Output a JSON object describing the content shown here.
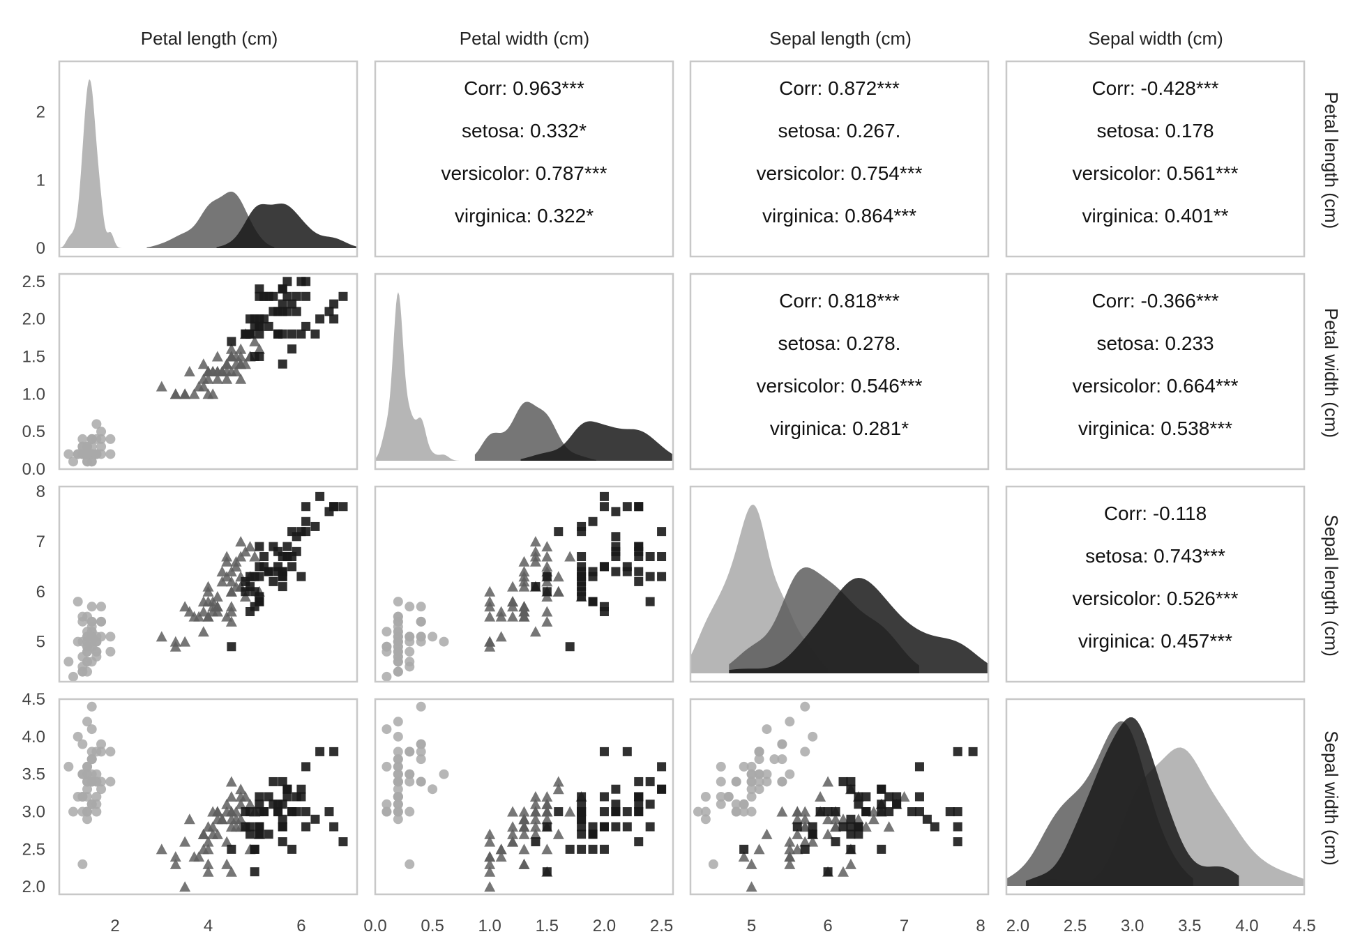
{
  "chart_data": {
    "type": "scatter",
    "title": "",
    "variables": [
      "Petal length (cm)",
      "Petal width (cm)",
      "Sepal length (cm)",
      "Sepal width (cm)"
    ],
    "species": [
      "setosa",
      "versicolor",
      "virginica"
    ],
    "colors": {
      "setosa": "#a9a9a9",
      "versicolor": "#5e5e5e",
      "virginica": "#1a1a1a"
    },
    "markers": {
      "setosa": "circle",
      "versicolor": "triangle",
      "virginica": "square"
    },
    "grid": false,
    "axis_ranges": [
      [
        0.8,
        7.2
      ],
      [
        0.0,
        2.6
      ],
      [
        4.2,
        8.1
      ],
      [
        1.9,
        4.5
      ]
    ],
    "axis_ticks": [
      [
        2,
        4,
        6
      ],
      [
        0.0,
        0.5,
        1.0,
        1.5,
        2.0,
        2.5
      ],
      [
        5,
        6,
        7,
        8
      ],
      [
        2.0,
        2.5,
        3.0,
        3.5,
        4.0,
        4.5
      ]
    ],
    "axis_tick_labels": [
      [
        "2",
        "4",
        "6"
      ],
      [
        "0.0",
        "0.5",
        "1.0",
        "1.5",
        "2.0",
        "2.5"
      ],
      [
        "5",
        "6",
        "7",
        "8"
      ],
      [
        "2.0",
        "2.5",
        "3.0",
        "3.5",
        "4.0",
        "4.5"
      ]
    ],
    "density_y_range": [
      0,
      2.6
    ],
    "density_y_ticks": [
      0,
      1,
      2
    ],
    "density_y_tick_labels": [
      "0",
      "1",
      "2"
    ],
    "corr_panels": [
      {
        "row": 0,
        "col": 1,
        "lines": [
          "Corr: 0.963***",
          "setosa: 0.332*",
          "versicolor: 0.787***",
          "virginica: 0.322*"
        ]
      },
      {
        "row": 0,
        "col": 2,
        "lines": [
          "Corr: 0.872***",
          "setosa: 0.267.",
          "versicolor: 0.754***",
          "virginica: 0.864***"
        ]
      },
      {
        "row": 0,
        "col": 3,
        "lines": [
          "Corr: -0.428***",
          "setosa: 0.178",
          "versicolor: 0.561***",
          "virginica: 0.401**"
        ]
      },
      {
        "row": 1,
        "col": 2,
        "lines": [
          "Corr: 0.818***",
          "setosa: 0.278.",
          "versicolor: 0.546***",
          "virginica: 0.281*"
        ]
      },
      {
        "row": 1,
        "col": 3,
        "lines": [
          "Corr: -0.366***",
          "setosa: 0.233",
          "versicolor: 0.664***",
          "virginica: 0.538***"
        ]
      },
      {
        "row": 2,
        "col": 3,
        "lines": [
          "Corr: -0.118",
          "setosa: 0.743***",
          "versicolor: 0.526***",
          "virginica: 0.457***"
        ]
      }
    ],
    "series": [
      {
        "name": "setosa",
        "petal_length": [
          1.4,
          1.4,
          1.3,
          1.5,
          1.4,
          1.7,
          1.4,
          1.5,
          1.4,
          1.5,
          1.5,
          1.6,
          1.4,
          1.1,
          1.2,
          1.5,
          1.3,
          1.4,
          1.7,
          1.5,
          1.7,
          1.5,
          1.0,
          1.7,
          1.9,
          1.6,
          1.6,
          1.5,
          1.4,
          1.6,
          1.6,
          1.5,
          1.5,
          1.4,
          1.5,
          1.2,
          1.3,
          1.4,
          1.3,
          1.5,
          1.3,
          1.3,
          1.3,
          1.6,
          1.9,
          1.4,
          1.6,
          1.4,
          1.5,
          1.4
        ],
        "petal_width": [
          0.2,
          0.2,
          0.2,
          0.2,
          0.2,
          0.4,
          0.3,
          0.2,
          0.2,
          0.1,
          0.2,
          0.2,
          0.1,
          0.1,
          0.2,
          0.4,
          0.4,
          0.3,
          0.3,
          0.3,
          0.2,
          0.4,
          0.2,
          0.5,
          0.2,
          0.2,
          0.4,
          0.2,
          0.2,
          0.2,
          0.2,
          0.4,
          0.1,
          0.2,
          0.2,
          0.2,
          0.2,
          0.1,
          0.2,
          0.2,
          0.3,
          0.3,
          0.2,
          0.6,
          0.4,
          0.3,
          0.2,
          0.2,
          0.2,
          0.2
        ],
        "sepal_length": [
          5.1,
          4.9,
          4.7,
          4.6,
          5.0,
          5.4,
          4.6,
          5.0,
          4.4,
          4.9,
          5.4,
          4.8,
          4.8,
          4.3,
          5.8,
          5.7,
          5.4,
          5.1,
          5.7,
          5.1,
          5.4,
          5.1,
          4.6,
          5.1,
          4.8,
          5.0,
          5.0,
          5.2,
          5.2,
          4.7,
          4.8,
          5.4,
          5.2,
          5.5,
          4.9,
          5.0,
          5.5,
          4.9,
          4.4,
          5.1,
          5.0,
          4.5,
          4.4,
          5.0,
          5.1,
          4.8,
          5.1,
          4.6,
          5.3,
          5.0
        ],
        "sepal_width": [
          3.5,
          3.0,
          3.2,
          3.1,
          3.6,
          3.9,
          3.4,
          3.4,
          2.9,
          3.1,
          3.7,
          3.4,
          3.0,
          3.0,
          4.0,
          4.4,
          3.9,
          3.5,
          3.8,
          3.8,
          3.4,
          3.7,
          3.6,
          3.3,
          3.4,
          3.0,
          3.4,
          3.5,
          3.4,
          3.2,
          3.1,
          3.4,
          4.1,
          4.2,
          3.1,
          3.2,
          3.5,
          3.6,
          3.0,
          3.4,
          3.5,
          2.3,
          3.2,
          3.5,
          3.8,
          3.0,
          3.8,
          3.2,
          3.7,
          3.3
        ]
      },
      {
        "name": "versicolor",
        "petal_length": [
          4.7,
          4.5,
          4.9,
          4.0,
          4.6,
          4.5,
          4.7,
          3.3,
          4.6,
          3.9,
          3.5,
          4.2,
          4.0,
          4.7,
          3.6,
          4.4,
          4.5,
          4.1,
          4.5,
          3.9,
          4.8,
          4.0,
          4.9,
          4.7,
          4.3,
          4.4,
          4.8,
          5.0,
          4.5,
          3.5,
          3.8,
          3.7,
          3.9,
          5.1,
          4.5,
          4.5,
          4.7,
          4.4,
          4.1,
          4.0,
          4.4,
          4.6,
          4.0,
          3.3,
          4.2,
          4.2,
          4.2,
          4.3,
          3.0,
          4.1
        ],
        "petal_width": [
          1.4,
          1.5,
          1.5,
          1.3,
          1.5,
          1.3,
          1.6,
          1.0,
          1.3,
          1.4,
          1.0,
          1.5,
          1.0,
          1.4,
          1.3,
          1.4,
          1.5,
          1.0,
          1.5,
          1.1,
          1.8,
          1.3,
          1.5,
          1.2,
          1.3,
          1.4,
          1.4,
          1.7,
          1.5,
          1.0,
          1.1,
          1.0,
          1.2,
          1.6,
          1.5,
          1.6,
          1.5,
          1.3,
          1.3,
          1.3,
          1.2,
          1.4,
          1.2,
          1.0,
          1.3,
          1.2,
          1.3,
          1.3,
          1.1,
          1.3
        ],
        "sepal_length": [
          7.0,
          6.4,
          6.9,
          5.5,
          6.5,
          5.7,
          6.3,
          4.9,
          6.6,
          5.2,
          5.0,
          5.9,
          6.0,
          6.1,
          5.6,
          6.7,
          5.6,
          5.8,
          6.2,
          5.6,
          5.9,
          6.1,
          6.3,
          6.1,
          6.4,
          6.6,
          6.8,
          6.7,
          6.0,
          5.7,
          5.5,
          5.5,
          5.8,
          6.0,
          5.4,
          6.0,
          6.7,
          6.3,
          5.6,
          5.5,
          5.5,
          6.1,
          5.8,
          5.0,
          5.6,
          5.7,
          5.7,
          6.2,
          5.1,
          5.7
        ],
        "sepal_width": [
          3.2,
          3.2,
          3.1,
          2.3,
          2.8,
          2.8,
          3.3,
          2.4,
          2.9,
          2.7,
          2.0,
          3.0,
          2.2,
          2.9,
          2.9,
          3.1,
          3.0,
          2.7,
          2.2,
          2.5,
          3.2,
          2.8,
          2.5,
          2.8,
          2.9,
          3.0,
          2.8,
          3.0,
          2.9,
          2.6,
          2.4,
          2.4,
          2.7,
          2.7,
          3.0,
          3.4,
          3.1,
          2.3,
          3.0,
          2.5,
          2.6,
          3.0,
          2.6,
          2.3,
          2.7,
          3.0,
          2.9,
          2.9,
          2.5,
          2.8
        ]
      },
      {
        "name": "virginica",
        "petal_length": [
          6.0,
          5.1,
          5.9,
          5.6,
          5.8,
          6.6,
          4.5,
          6.3,
          5.8,
          6.1,
          5.1,
          5.3,
          5.5,
          5.0,
          5.1,
          5.3,
          5.5,
          6.7,
          6.9,
          5.0,
          5.7,
          4.9,
          6.7,
          4.9,
          5.7,
          6.0,
          4.8,
          4.9,
          5.6,
          5.8,
          6.1,
          6.4,
          5.6,
          5.1,
          5.6,
          6.1,
          5.6,
          5.5,
          4.8,
          5.4,
          5.6,
          5.1,
          5.1,
          5.9,
          5.7,
          5.2,
          5.0,
          5.2,
          5.4,
          5.1
        ],
        "petal_width": [
          2.5,
          1.9,
          2.1,
          1.8,
          2.2,
          2.1,
          1.7,
          1.8,
          1.8,
          2.5,
          2.0,
          1.9,
          2.1,
          2.0,
          2.4,
          2.3,
          1.8,
          2.2,
          2.3,
          1.5,
          2.3,
          2.0,
          2.0,
          1.8,
          2.1,
          1.8,
          1.8,
          1.8,
          2.1,
          1.6,
          1.9,
          2.0,
          2.2,
          1.5,
          1.4,
          2.3,
          2.4,
          1.8,
          1.8,
          2.1,
          2.4,
          2.3,
          1.9,
          2.3,
          2.5,
          2.3,
          1.9,
          2.0,
          2.3,
          1.8
        ],
        "sepal_length": [
          6.3,
          5.8,
          7.1,
          6.3,
          6.5,
          7.6,
          4.9,
          7.3,
          6.7,
          7.2,
          6.5,
          6.4,
          6.8,
          5.7,
          5.8,
          6.4,
          6.5,
          7.7,
          7.7,
          6.0,
          6.9,
          5.6,
          7.7,
          6.3,
          6.7,
          7.2,
          6.2,
          6.1,
          6.4,
          7.2,
          7.4,
          7.9,
          6.4,
          6.3,
          6.1,
          7.7,
          6.3,
          6.4,
          6.0,
          6.9,
          6.7,
          6.9,
          5.8,
          6.8,
          6.7,
          6.7,
          6.3,
          6.5,
          6.2,
          5.9
        ],
        "sepal_width": [
          3.3,
          2.7,
          3.0,
          2.9,
          3.0,
          3.0,
          2.5,
          2.9,
          2.5,
          3.6,
          3.2,
          2.7,
          3.0,
          2.5,
          2.8,
          3.2,
          3.0,
          3.8,
          2.6,
          2.2,
          3.2,
          2.8,
          2.8,
          2.7,
          3.3,
          3.2,
          2.8,
          3.0,
          2.8,
          3.0,
          2.8,
          3.8,
          2.8,
          2.8,
          2.6,
          3.0,
          3.4,
          3.1,
          3.0,
          3.1,
          3.1,
          3.1,
          2.7,
          3.2,
          3.3,
          3.0,
          2.5,
          3.0,
          3.4,
          3.0
        ]
      }
    ]
  }
}
